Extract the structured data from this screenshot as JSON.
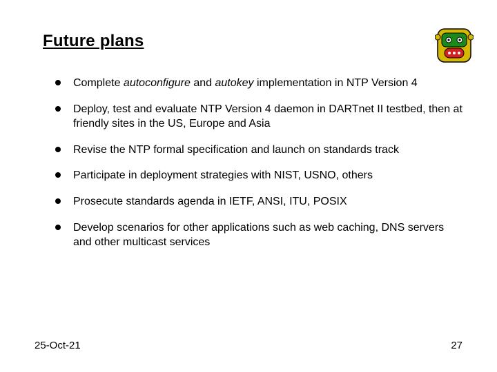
{
  "title": "Future plans",
  "bullets": [
    {
      "html": "Complete <i>autoconfigure</i> and <i>autokey</i> implementation in NTP Version 4"
    },
    {
      "html": "Deploy, test and evaluate NTP Version 4 daemon in DARTnet II testbed, then at friendly sites in the US, Europe and Asia"
    },
    {
      "html": "Revise the NTP formal specification and launch on standards track"
    },
    {
      "html": "Participate in deployment strategies with NIST, USNO, others"
    },
    {
      "html": "Prosecute standards agenda in IETF, ANSI, ITU, POSIX"
    },
    {
      "html": "Develop scenarios for other applications such as web caching, DNS servers and other multicast services"
    }
  ],
  "footer": {
    "date": "25-Oct-21",
    "page": "27"
  },
  "logo": {
    "bg": "#d7b800",
    "accent1": "#d02020",
    "accent2": "#1a8a1a",
    "accent3": "#ffffff",
    "outline": "#000000"
  }
}
